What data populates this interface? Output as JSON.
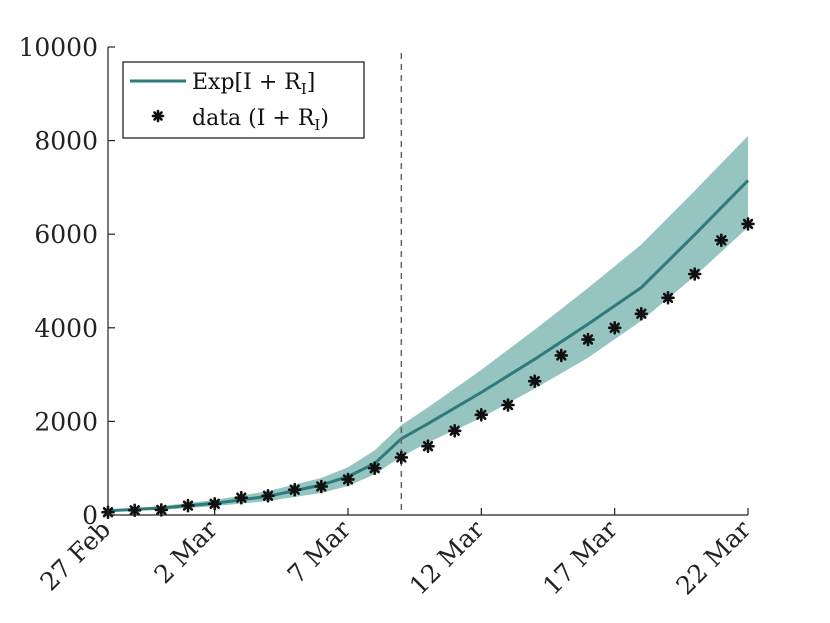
{
  "chart_data": {
    "type": "line",
    "title": "",
    "xlabel": "",
    "ylabel": "",
    "xlim": [
      0,
      24
    ],
    "ylim": [
      0,
      10000
    ],
    "x_tick_positions": [
      0,
      4,
      9,
      14,
      19,
      24
    ],
    "x_tick_labels": [
      "27 Feb",
      "2 Mar",
      "7 Mar",
      "12 Mar",
      "17 Mar",
      "22 Mar"
    ],
    "y_ticks": [
      0,
      2000,
      4000,
      6000,
      8000,
      10000
    ],
    "y_tick_labels": [
      "0",
      "2000",
      "4000",
      "6000",
      "8000",
      "10000"
    ],
    "vline_x": 11,
    "legend": {
      "position": "top-left",
      "entries": [
        {
          "label_main": "Exp[I + R",
          "label_sub": "I",
          "label_end": "]"
        },
        {
          "label_main": "data (I + R",
          "label_sub": "I",
          "label_end": ")"
        }
      ]
    },
    "series": [
      {
        "name": "Exp[I + R_I]",
        "kind": "line",
        "x": [
          0,
          2,
          4,
          6,
          8,
          9,
          10,
          11,
          12,
          14,
          16,
          18,
          20,
          22,
          24
        ],
        "values": [
          90,
          150,
          250,
          400,
          640,
          820,
          1100,
          1630,
          1950,
          2620,
          3330,
          4080,
          4860,
          5990,
          7150
        ]
      },
      {
        "name": "confidence band",
        "kind": "band",
        "x": [
          0,
          2,
          4,
          6,
          8,
          9,
          10,
          11,
          12,
          14,
          16,
          18,
          20,
          22,
          24
        ],
        "lower": [
          70,
          110,
          190,
          300,
          470,
          620,
          870,
          1250,
          1550,
          2080,
          2700,
          3360,
          4150,
          5100,
          6150
        ],
        "upper": [
          110,
          190,
          320,
          510,
          790,
          1020,
          1380,
          1920,
          2300,
          3100,
          3960,
          4850,
          5780,
          6930,
          8100
        ]
      },
      {
        "name": "data (I + R_I)",
        "kind": "scatter",
        "x": [
          0,
          1,
          2,
          3,
          4,
          5,
          6,
          7,
          8,
          9,
          10,
          11,
          12,
          13,
          14,
          15,
          16,
          17,
          18,
          19,
          20,
          21,
          22,
          23,
          24
        ],
        "values": [
          60,
          100,
          110,
          200,
          240,
          370,
          410,
          540,
          610,
          760,
          1000,
          1230,
          1470,
          1800,
          2140,
          2350,
          2860,
          3410,
          3750,
          4000,
          4300,
          4640,
          5150,
          5870,
          6220
        ]
      }
    ],
    "colors": {
      "line": "#2e7b7b",
      "band": "#96c4c0",
      "marker": "#111111",
      "axis": "#222222",
      "vline": "#666666"
    }
  }
}
